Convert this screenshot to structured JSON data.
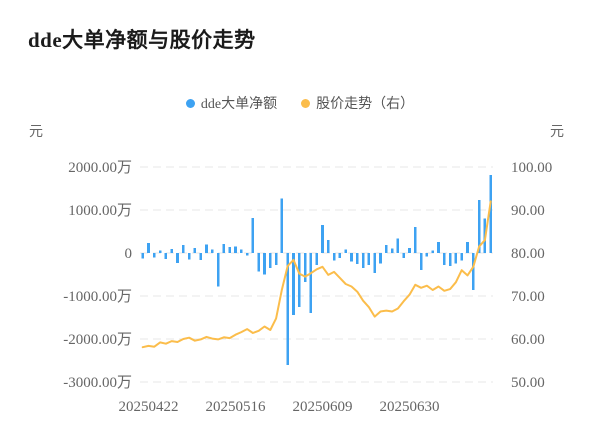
{
  "title": "dde大单净额与股价走势",
  "legend": [
    {
      "label": "dde大单净额",
      "color": "#3da2f2"
    },
    {
      "label": "股价走势（右）",
      "color": "#fbbd4b"
    }
  ],
  "axes": {
    "left_unit": "元",
    "right_unit": "元",
    "left_ticks": [
      "2000.00万",
      "1000.00万",
      "0",
      "-1000.00万",
      "-2000.00万",
      "-3000.00万"
    ],
    "left_tick_values_wan": [
      2000,
      1000,
      0,
      -1000,
      -2000,
      -3000
    ],
    "right_ticks": [
      "100.00",
      "90.00",
      "80.00",
      "70.00",
      "60.00",
      "50.00"
    ],
    "right_tick_values": [
      100,
      90,
      80,
      70,
      60,
      50
    ]
  },
  "chart_data": {
    "type": "bar+line",
    "x_tick_labels": [
      {
        "label": "20250422",
        "index": 1
      },
      {
        "label": "20250516",
        "index": 16
      },
      {
        "label": "20250609",
        "index": 31
      },
      {
        "label": "20250630",
        "index": 46
      }
    ],
    "left_axis": {
      "label": "元",
      "range_wan": [
        -3000,
        2000
      ],
      "unit": "万元"
    },
    "right_axis": {
      "label": "元",
      "range": [
        50,
        100
      ]
    },
    "grid": true,
    "legend_position": "top",
    "series": [
      {
        "name": "dde大单净额",
        "type": "bar",
        "axis": "left",
        "unit": "万元",
        "color": "#3da2f2",
        "values": [
          -130,
          230,
          -110,
          60,
          -140,
          90,
          -230,
          190,
          -150,
          115,
          -160,
          200,
          80,
          -780,
          210,
          140,
          150,
          80,
          -60,
          810,
          -430,
          -500,
          -350,
          -280,
          1270,
          -2600,
          -1440,
          -1250,
          -670,
          -1400,
          -280,
          650,
          300,
          -180,
          -120,
          80,
          -200,
          -250,
          -350,
          -280,
          -470,
          -240,
          190,
          100,
          340,
          -120,
          120,
          610,
          -400,
          -80,
          60,
          260,
          -280,
          -300,
          -240,
          -170,
          260,
          -860,
          1230,
          800,
          1815
        ]
      },
      {
        "name": "股价走势（右）",
        "type": "line",
        "axis": "right",
        "unit": "元",
        "color": "#fbbd4b",
        "values": [
          58.1,
          58.4,
          58.2,
          59.2,
          58.9,
          59.5,
          59.3,
          60.0,
          60.3,
          59.6,
          59.9,
          60.5,
          60.1,
          59.9,
          60.4,
          60.2,
          61.0,
          61.6,
          62.3,
          61.4,
          61.9,
          62.9,
          62.1,
          64.8,
          71.5,
          77.0,
          78.4,
          75.2,
          74.5,
          75.3,
          76.2,
          76.8,
          74.9,
          75.6,
          74.2,
          72.8,
          72.2,
          71.0,
          68.9,
          67.4,
          65.2,
          66.4,
          66.6,
          66.4,
          67.1,
          68.8,
          70.3,
          72.6,
          71.9,
          72.4,
          71.4,
          72.2,
          71.2,
          71.6,
          73.2,
          76.0,
          74.8,
          76.8,
          81.5,
          83.0,
          92.0
        ]
      }
    ]
  }
}
